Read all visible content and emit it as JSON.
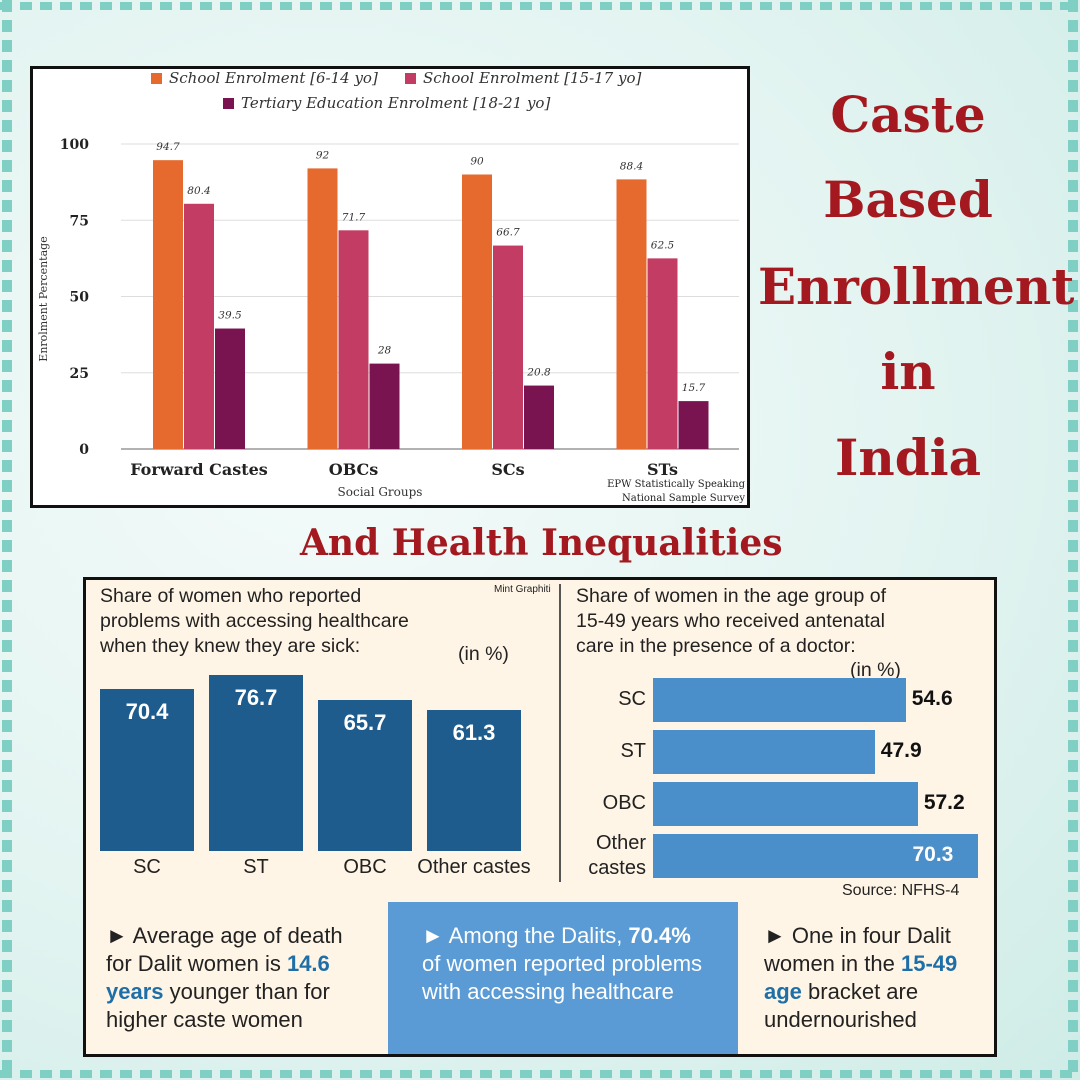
{
  "title": {
    "words": [
      "Caste",
      "Based",
      "Enrollment",
      "in",
      "India"
    ],
    "subtitle": "And Health Inequalities"
  },
  "colors": {
    "title_red": "#a3191f",
    "series": [
      "#e6692e",
      "#c23c63",
      "#7a1450"
    ],
    "health_bar_dark": "#1e5c8d",
    "health_bar_light": "#4b8fca"
  },
  "chart_data": [
    {
      "type": "bar",
      "categories": [
        "Forward Castes",
        "OBCs",
        "SCs",
        "STs"
      ],
      "series": [
        {
          "name": "School Enrolment [6-14 yo]",
          "values": [
            94.7,
            92,
            90,
            88.4
          ]
        },
        {
          "name": "School Enrolment [15-17 yo]",
          "values": [
            80.4,
            71.7,
            66.7,
            62.5
          ]
        },
        {
          "name": "Tertiary Education Enrolment [18-21 yo]",
          "values": [
            39.5,
            28,
            20.8,
            15.7
          ]
        }
      ],
      "value_labels": [
        [
          "94.7",
          "92",
          "90",
          "88.4"
        ],
        [
          "80.4",
          "71.7",
          "66.7",
          "62.5"
        ],
        [
          "39.5",
          "28",
          "20.8",
          "15.7"
        ]
      ],
      "xlabel": "Social Groups",
      "ylabel": "Enrolment Percentage",
      "yticks": [
        "0",
        "25",
        "50",
        "75",
        "100"
      ],
      "ylim": [
        0,
        100
      ],
      "grid": "horizontal",
      "legend": "top",
      "source_lines": [
        "EPW Statistically Speaking",
        "National Sample Survey"
      ]
    },
    {
      "type": "bar",
      "title_lines": [
        "Share of women who reported",
        "problems with accessing healthcare",
        "when they knew they are sick:"
      ],
      "unit": "(in %)",
      "credit": "Mint Graphiti",
      "categories": [
        "SC",
        "ST",
        "OBC",
        "Other castes"
      ],
      "values": [
        70.4,
        76.7,
        65.7,
        61.3
      ],
      "value_labels": [
        "70.4",
        "76.7",
        "65.7",
        "61.3"
      ]
    },
    {
      "type": "bar",
      "orientation": "horizontal",
      "title_lines": [
        "Share of women in the age group of",
        "15-49 years who received antenatal",
        "care in the presence of a doctor:"
      ],
      "unit": "(in %)",
      "categories": [
        [
          "SC"
        ],
        [
          "ST"
        ],
        [
          "OBC"
        ],
        [
          "Other",
          "castes"
        ]
      ],
      "values": [
        54.6,
        47.9,
        57.2,
        70.3
      ],
      "value_labels": [
        "54.6",
        "47.9",
        "57.2",
        "70.3"
      ],
      "source": "Source: NFHS-4"
    }
  ],
  "facts": [
    {
      "pre": "► Average age of death for Dalit women is ",
      "hl": "14.6 years",
      "post": " younger than for higher caste women"
    },
    {
      "pre": "► Among the Dalits, ",
      "hl": "70.4%",
      "post": " of women reported problems with accessing healthcare"
    },
    {
      "pre": "► One in four Dalit women in the ",
      "hl": "15-49 age",
      "post": " bracket are undernourished"
    }
  ]
}
